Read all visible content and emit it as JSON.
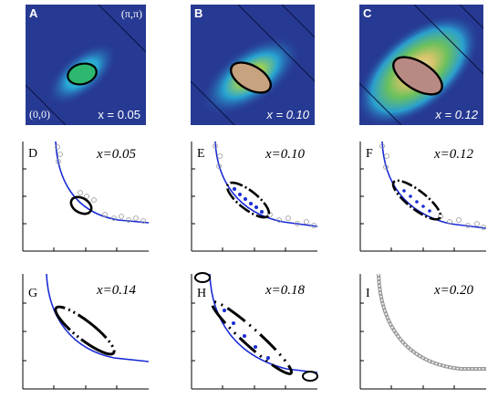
{
  "figure": {
    "heatmap_panels": [
      {
        "letter": "A",
        "x_label": "x = 0.05",
        "corner_top": "(π,π)",
        "corner_bottom": "(0,0)"
      },
      {
        "letter": "B",
        "x_label": "x = 0.10"
      },
      {
        "letter": "C",
        "x_label": "x = 0.12"
      }
    ],
    "line_panels": [
      {
        "letter": "D",
        "x_label": "x=0.05"
      },
      {
        "letter": "E",
        "x_label": "x=0.10"
      },
      {
        "letter": "F",
        "x_label": "x=0.12"
      },
      {
        "letter": "G",
        "x_label": "x=0.14"
      },
      {
        "letter": "H",
        "x_label": "x=0.18"
      },
      {
        "letter": "I",
        "x_label": "x=0.20"
      }
    ]
  }
}
